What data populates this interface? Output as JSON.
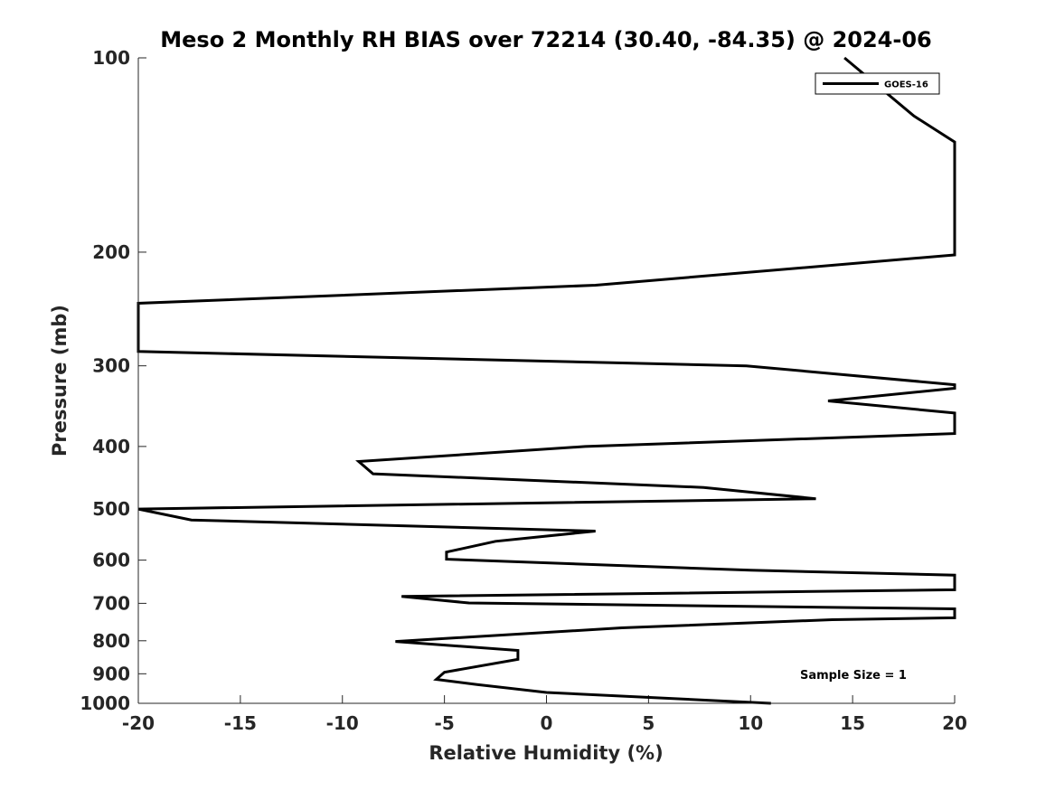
{
  "chart_data": {
    "type": "line",
    "title": "Meso 2 Monthly RH BIAS over 72214 (30.40, -84.35) @ 2024-06",
    "xlabel": "Relative Humidity (%)",
    "ylabel": "Pressure (mb)",
    "xlim": [
      -20,
      20
    ],
    "ylim": [
      100,
      1000
    ],
    "y_scale": "log",
    "y_reversed": true,
    "x_ticks": [
      -20,
      -15,
      -10,
      -5,
      0,
      5,
      10,
      15,
      20
    ],
    "y_ticks": [
      100,
      200,
      300,
      400,
      500,
      600,
      700,
      800,
      900,
      1000
    ],
    "grid": false,
    "legend_position": "top-right",
    "annotation": "Sample Size = 1",
    "series": [
      {
        "name": "GOES-16",
        "color": "#000000",
        "points": [
          {
            "x": 11.0,
            "p": 1000
          },
          {
            "x": 0.0,
            "p": 962
          },
          {
            "x": -3.4,
            "p": 935
          },
          {
            "x": -5.4,
            "p": 918
          },
          {
            "x": -5.0,
            "p": 895
          },
          {
            "x": -1.4,
            "p": 855
          },
          {
            "x": -1.4,
            "p": 828
          },
          {
            "x": -7.4,
            "p": 802
          },
          {
            "x": 3.7,
            "p": 764
          },
          {
            "x": 14.0,
            "p": 742
          },
          {
            "x": 20.0,
            "p": 737
          },
          {
            "x": 20.0,
            "p": 714
          },
          {
            "x": -3.8,
            "p": 699
          },
          {
            "x": -7.1,
            "p": 683
          },
          {
            "x": 20.0,
            "p": 667
          },
          {
            "x": 20.0,
            "p": 633
          },
          {
            "x": 10.0,
            "p": 622
          },
          {
            "x": -4.9,
            "p": 598
          },
          {
            "x": -4.9,
            "p": 583
          },
          {
            "x": -2.5,
            "p": 561
          },
          {
            "x": 2.4,
            "p": 541
          },
          {
            "x": -17.4,
            "p": 520
          },
          {
            "x": -20.0,
            "p": 500
          },
          {
            "x": 13.2,
            "p": 482
          },
          {
            "x": 7.7,
            "p": 463
          },
          {
            "x": -8.5,
            "p": 441
          },
          {
            "x": -9.2,
            "p": 422
          },
          {
            "x": 1.9,
            "p": 400
          },
          {
            "x": 20.0,
            "p": 382
          },
          {
            "x": 20.0,
            "p": 355
          },
          {
            "x": 13.8,
            "p": 340
          },
          {
            "x": 20.0,
            "p": 325
          },
          {
            "x": 20.0,
            "p": 321
          },
          {
            "x": 9.8,
            "p": 300
          },
          {
            "x": -20.0,
            "p": 285
          },
          {
            "x": -20.0,
            "p": 240
          },
          {
            "x": 2.4,
            "p": 225
          },
          {
            "x": 20.0,
            "p": 202
          },
          {
            "x": 20.0,
            "p": 135
          },
          {
            "x": 18.0,
            "p": 123
          },
          {
            "x": 14.6,
            "p": 100
          }
        ]
      }
    ]
  }
}
